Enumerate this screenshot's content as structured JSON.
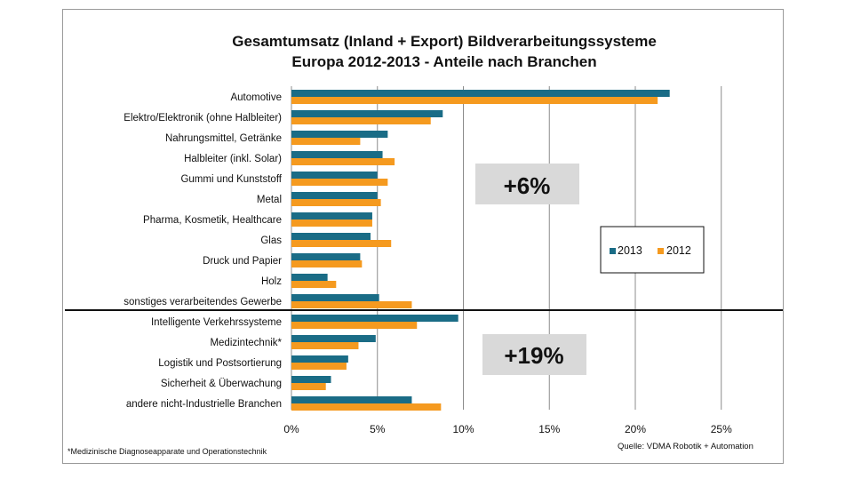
{
  "chart_data": {
    "type": "bar",
    "orientation": "horizontal",
    "title": "Gesamtumsatz (Inland + Export) Bildverarbeitungssysteme",
    "subtitle": "Europa 2012-2013 - Anteile nach Branchen",
    "categories": [
      "Automotive",
      "Elektro/Elektronik (ohne Halbleiter)",
      "Nahrungsmittel, Getränke",
      "Halbleiter (inkl. Solar)",
      "Gummi und Kunststoff",
      "Metal",
      "Pharma, Kosmetik, Healthcare",
      "Glas",
      "Druck und Papier",
      "Holz",
      "sonstiges verarbeitendes Gewerbe",
      "Intelligente Verkehrssysteme",
      "Medizintechnik*",
      "Logistik und Postsortierung",
      "Sicherheit & Überwachung",
      "andere nicht-Industrielle Branchen"
    ],
    "series": [
      {
        "name": "2013",
        "color": "#1a6c86",
        "values": [
          22.0,
          8.8,
          5.6,
          5.3,
          5.0,
          5.0,
          4.7,
          4.6,
          4.0,
          2.1,
          5.1,
          9.7,
          4.9,
          3.3,
          2.3,
          7.0
        ]
      },
      {
        "name": "2012",
        "color": "#f59a1f",
        "values": [
          21.3,
          8.1,
          4.0,
          6.0,
          5.6,
          5.2,
          4.7,
          5.8,
          4.1,
          2.6,
          7.0,
          7.3,
          3.9,
          3.2,
          2.0,
          8.7
        ]
      }
    ],
    "xlim": [
      0,
      30
    ],
    "xticks": [
      "0%",
      "5%",
      "10%",
      "15%",
      "20%",
      "25%"
    ],
    "xtick_values": [
      0,
      5,
      10,
      15,
      20,
      25
    ],
    "grid": "vertical",
    "legend_position": "right",
    "annotations": [
      {
        "text": "+6%",
        "group": "industrial"
      },
      {
        "text": "+19%",
        "group": "non-industrial"
      }
    ],
    "footnote": "*Medizinische Diagnoseapparate  und Operationstechnik",
    "source": "Quelle: VDMA Robotik + Automation"
  }
}
